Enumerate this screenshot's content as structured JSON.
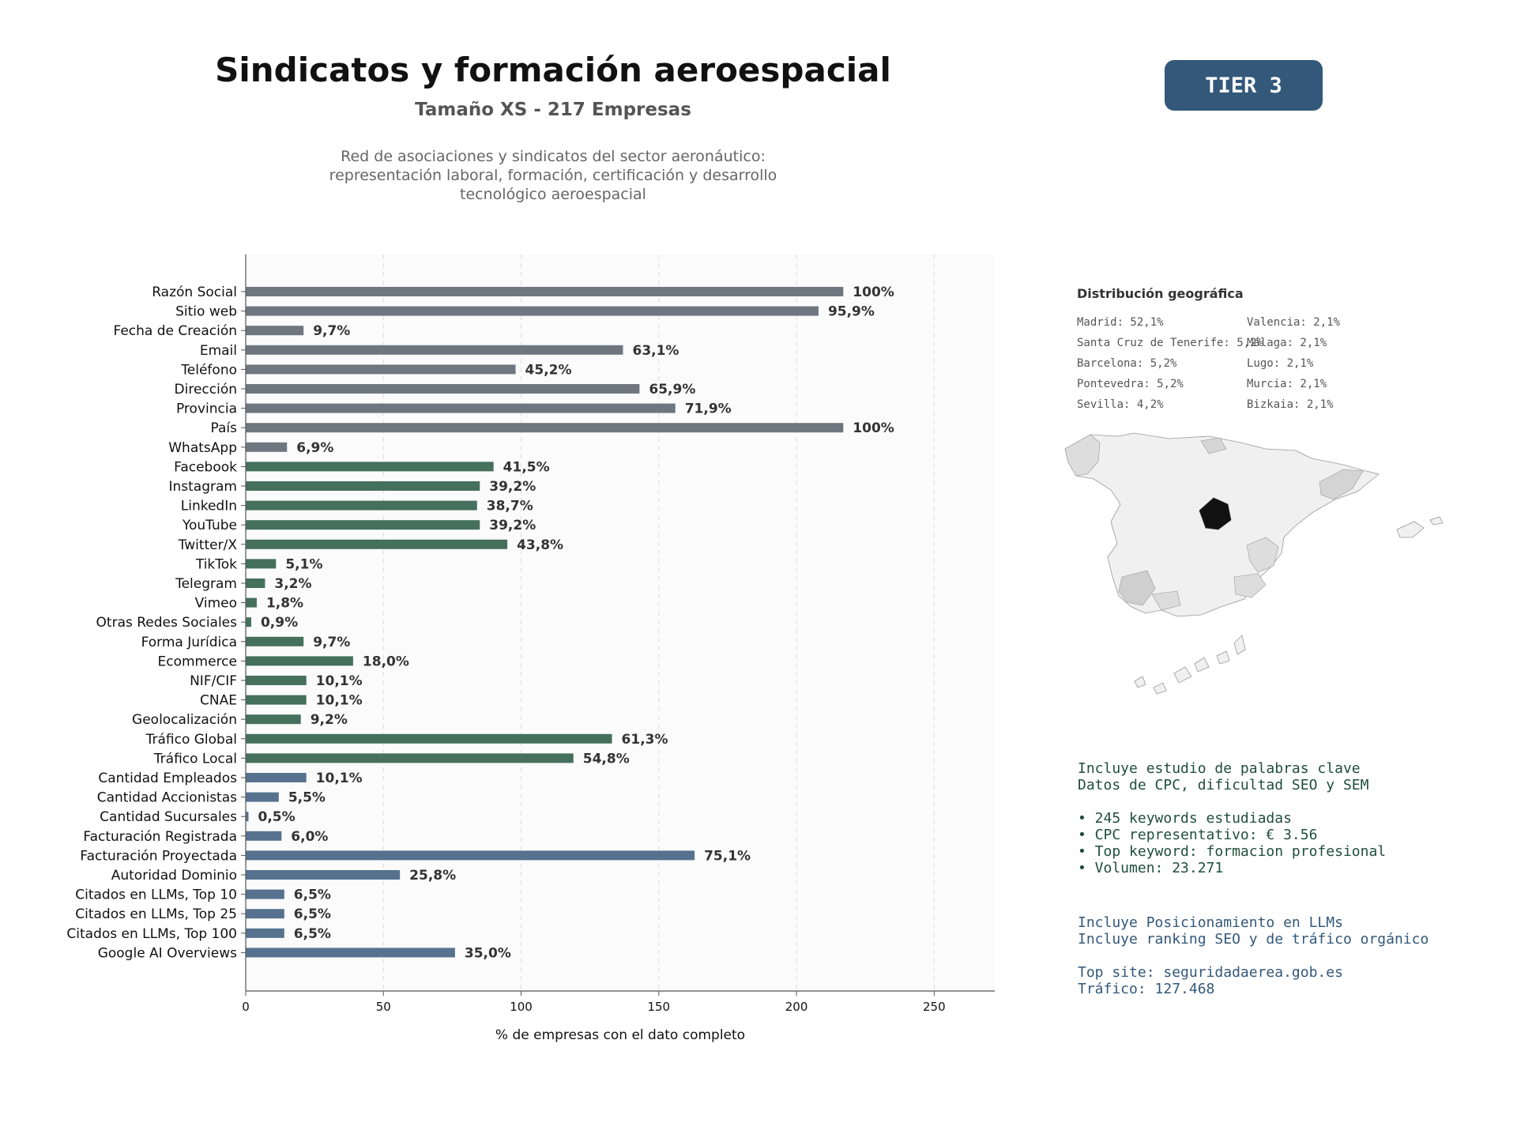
{
  "header": {
    "title": "Sindicatos y formación aeroespacial",
    "subtitle": "Tamaño XS - 217 Empresas",
    "description": "Red de asociaciones y sindicatos del sector aeronáutico: representación laboral, formación, certificación y desarrollo tecnológico aeroespacial",
    "tier_badge": "TIER 3"
  },
  "colors": {
    "basic": "#6e7780",
    "social": "#44705c",
    "business": "#56728f",
    "badge": "#33587a",
    "map_highlight": "#111111",
    "map_mid": "#d6d6d6",
    "map_light": "#f0f0f0"
  },
  "chart_data": {
    "type": "bar",
    "orientation": "horizontal",
    "xlabel": "% de empresas con el dato completo",
    "xlim": [
      0,
      272
    ],
    "xticks": [
      "0",
      "50",
      "100",
      "150",
      "200",
      "250"
    ],
    "grid": "vertical dashed",
    "categories": [
      "Razón Social",
      "Sitio web",
      "Fecha de Creación",
      "Email",
      "Teléfono",
      "Dirección",
      "Provincia",
      "País",
      "WhatsApp",
      "Facebook",
      "Instagram",
      "LinkedIn",
      "YouTube",
      "Twitter/X",
      "TikTok",
      "Telegram",
      "Vimeo",
      "Otras Redes Sociales",
      "Forma Jurídica",
      "Ecommerce",
      "NIF/CIF",
      "CNAE",
      "Geolocalización",
      "Tráfico Global",
      "Tráfico Local",
      "Cantidad Empleados",
      "Cantidad Accionistas",
      "Cantidad Sucursales",
      "Facturación Registrada",
      "Facturación Proyectada",
      "Autoridad Dominio",
      "Citados en LLMs, Top 10",
      "Citados en LLMs, Top 25",
      "Citados en LLMs, Top 100",
      "Google AI Overviews"
    ],
    "values": [
      217,
      208,
      21,
      137,
      98,
      143,
      156,
      217,
      15,
      90,
      85,
      84,
      85,
      95,
      11,
      7,
      4,
      2,
      21,
      39,
      22,
      22,
      20,
      133,
      119,
      22,
      12,
      1,
      13,
      163,
      56,
      14,
      14,
      14,
      76
    ],
    "labels": [
      "100%",
      "95,9%",
      "9,7%",
      "63,1%",
      "45,2%",
      "65,9%",
      "71,9%",
      "100%",
      "6,9%",
      "41,5%",
      "39,2%",
      "38,7%",
      "39,2%",
      "43,8%",
      "5,1%",
      "3,2%",
      "1,8%",
      "0,9%",
      "9,7%",
      "18,0%",
      "10,1%",
      "10,1%",
      "9,2%",
      "61,3%",
      "54,8%",
      "10,1%",
      "5,5%",
      "0,5%",
      "6,0%",
      "75,1%",
      "25,8%",
      "6,5%",
      "6,5%",
      "6,5%",
      "35,0%"
    ],
    "groups": [
      "basic",
      "basic",
      "basic",
      "basic",
      "basic",
      "basic",
      "basic",
      "basic",
      "basic",
      "social",
      "social",
      "social",
      "social",
      "social",
      "social",
      "social",
      "social",
      "social",
      "social",
      "social",
      "social",
      "social",
      "social",
      "social",
      "social",
      "business",
      "business",
      "business",
      "business",
      "business",
      "business",
      "business",
      "business",
      "business",
      "business"
    ]
  },
  "geo": {
    "title": "Distribución geográfica",
    "items": [
      "Madrid: 52,1%",
      "Valencia: 2,1%",
      "Santa Cruz de Tenerife: 5,2%",
      "Málaga: 2,1%",
      "Barcelona: 5,2%",
      "Lugo: 2,1%",
      "Pontevedra: 5,2%",
      "Murcia: 2,1%",
      "Sevilla: 4,2%",
      "Bizkaia: 2,1%"
    ]
  },
  "seo_panel": {
    "lines": [
      "Incluye estudio de palabras clave",
      "Datos de CPC, dificultad SEO y SEM",
      "",
      "• 245 keywords estudiadas",
      "• CPC representativo: € 3.56",
      "• Top keyword: formacion profesional",
      "• Volumen: 23.271"
    ]
  },
  "llm_panel": {
    "lines": [
      "Incluye Posicionamiento en LLMs",
      "Incluye ranking SEO y de tráfico orgánico",
      "",
      "Top site: seguridadaerea.gob.es",
      "Tráfico: 127.468"
    ]
  }
}
